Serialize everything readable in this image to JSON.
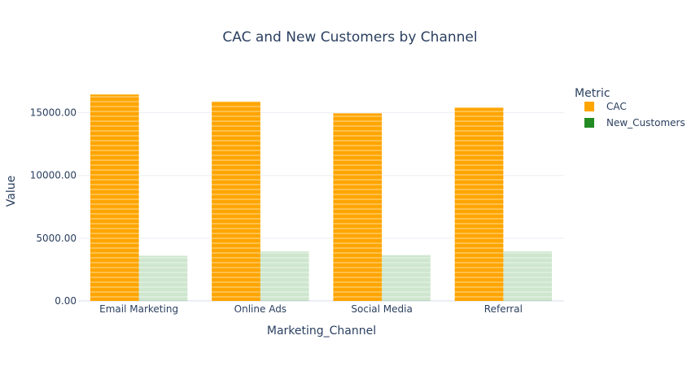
{
  "chart_data": {
    "type": "bar",
    "title": "CAC and New Customers by Channel",
    "xlabel": "Marketing_Channel",
    "ylabel": "Value",
    "categories": [
      "Email Marketing",
      "Online Ads",
      "Social Media",
      "Referral"
    ],
    "series": [
      {
        "name": "CAC",
        "color": "#FFA500",
        "values": [
          16450,
          15900,
          14950,
          15400
        ]
      },
      {
        "name": "New_Customers",
        "color": "#228B22",
        "values": [
          3600,
          3950,
          3650,
          3950
        ]
      }
    ],
    "ylim": [
      0,
      17500
    ],
    "yticks": [
      0,
      5000,
      10000,
      15000
    ],
    "ytick_labels": [
      "0.00",
      "5000.00",
      "10000.00",
      "15000.00"
    ],
    "grid": true,
    "legend": {
      "title": "Metric",
      "placement": "right"
    }
  }
}
